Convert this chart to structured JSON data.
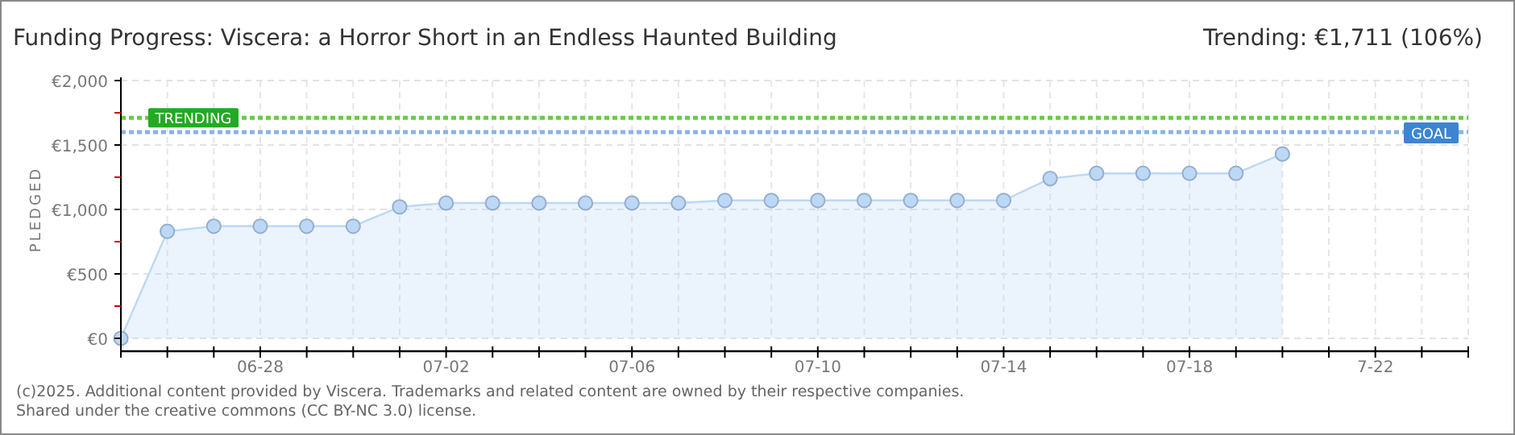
{
  "chart_data": {
    "type": "area",
    "title": "Funding Progress: Viscera: a Horror Short in an Endless Haunted Building",
    "subtitle": "Trending:  €1,711 (106%)",
    "ylabel": "PLEDGED",
    "x": [
      "2025-06-25",
      "2025-06-26",
      "2025-06-27",
      "2025-06-28",
      "2025-06-29",
      "2025-06-30",
      "2025-07-01",
      "2025-07-02",
      "2025-07-03",
      "2025-07-04",
      "2025-07-05",
      "2025-07-06",
      "2025-07-07",
      "2025-07-08",
      "2025-07-09",
      "2025-07-10",
      "2025-07-11",
      "2025-07-12",
      "2025-07-13",
      "2025-07-14",
      "2025-07-15",
      "2025-07-16",
      "2025-07-17",
      "2025-07-18",
      "2025-07-19",
      "2025-07-20"
    ],
    "series": [
      {
        "color": "#bcd8f5",
        "values": [
          0,
          830,
          870,
          870,
          870,
          870,
          1020,
          1050,
          1050,
          1050,
          1050,
          1050,
          1050,
          1070,
          1070,
          1070,
          1070,
          1070,
          1070,
          1070,
          1240,
          1280,
          1280,
          1280,
          1280,
          1430
        ]
      }
    ],
    "xlim": [
      "2025-06-25",
      "2025-07-24"
    ],
    "xticks": [
      {
        "value": "2025-06-25",
        "label": null
      },
      {
        "value": "2025-06-26",
        "label": null
      },
      {
        "value": "2025-06-27",
        "label": null
      },
      {
        "value": "2025-06-28",
        "label": "06-28"
      },
      {
        "value": "2025-06-29",
        "label": null
      },
      {
        "value": "2025-06-30",
        "label": null
      },
      {
        "value": "2025-07-01",
        "label": null
      },
      {
        "value": "2025-07-02",
        "label": "07-02"
      },
      {
        "value": "2025-07-03",
        "label": null
      },
      {
        "value": "2025-07-04",
        "label": null
      },
      {
        "value": "2025-07-05",
        "label": null
      },
      {
        "value": "2025-07-06",
        "label": "07-06"
      },
      {
        "value": "2025-07-07",
        "label": null
      },
      {
        "value": "2025-07-08",
        "label": null
      },
      {
        "value": "2025-07-09",
        "label": null
      },
      {
        "value": "2025-07-10",
        "label": "07-10"
      },
      {
        "value": "2025-07-11",
        "label": null
      },
      {
        "value": "2025-07-12",
        "label": null
      },
      {
        "value": "2025-07-13",
        "label": null
      },
      {
        "value": "2025-07-14",
        "label": "07-14"
      },
      {
        "value": "2025-07-15",
        "label": null
      },
      {
        "value": "2025-07-16",
        "label": null
      },
      {
        "value": "2025-07-17",
        "label": null
      },
      {
        "value": "2025-07-18",
        "label": "07-18"
      },
      {
        "value": "2025-07-19",
        "label": null
      },
      {
        "value": "2025-07-20",
        "label": null
      },
      {
        "value": "2025-07-21",
        "label": null
      },
      {
        "value": "2025-07-22",
        "label": "7-22"
      },
      {
        "value": "2025-07-23",
        "label": null
      },
      {
        "value": "2025-07-24",
        "label": null
      }
    ],
    "ylim": [
      0,
      2000
    ],
    "yticks": [
      {
        "value": 0,
        "label": "€0"
      },
      {
        "value": 250,
        "label": null
      },
      {
        "value": 500,
        "label": "€500"
      },
      {
        "value": 750,
        "label": null
      },
      {
        "value": 1000,
        "label": "€1,000"
      },
      {
        "value": 1250,
        "label": null
      },
      {
        "value": 1500,
        "label": "€1,500"
      },
      {
        "value": 1750,
        "label": null
      },
      {
        "value": 2000,
        "label": "€2,000"
      }
    ],
    "grid": true,
    "marker": "circle",
    "ref_lines": [
      {
        "axis": "y",
        "value": 1711,
        "label": "TRENDING",
        "color": "#66cc44",
        "line_style": "dotted"
      },
      {
        "axis": "y",
        "value": 1600,
        "label": "GOAL",
        "color": "#88b4e8",
        "line_style": "dotted"
      }
    ],
    "annotations": [
      "(c)2025. Additional content provided by Viscera. Trademarks and related content are owned by their respective companies.",
      "Shared under the creative commons (CC BY-NC 3.0) license."
    ]
  }
}
